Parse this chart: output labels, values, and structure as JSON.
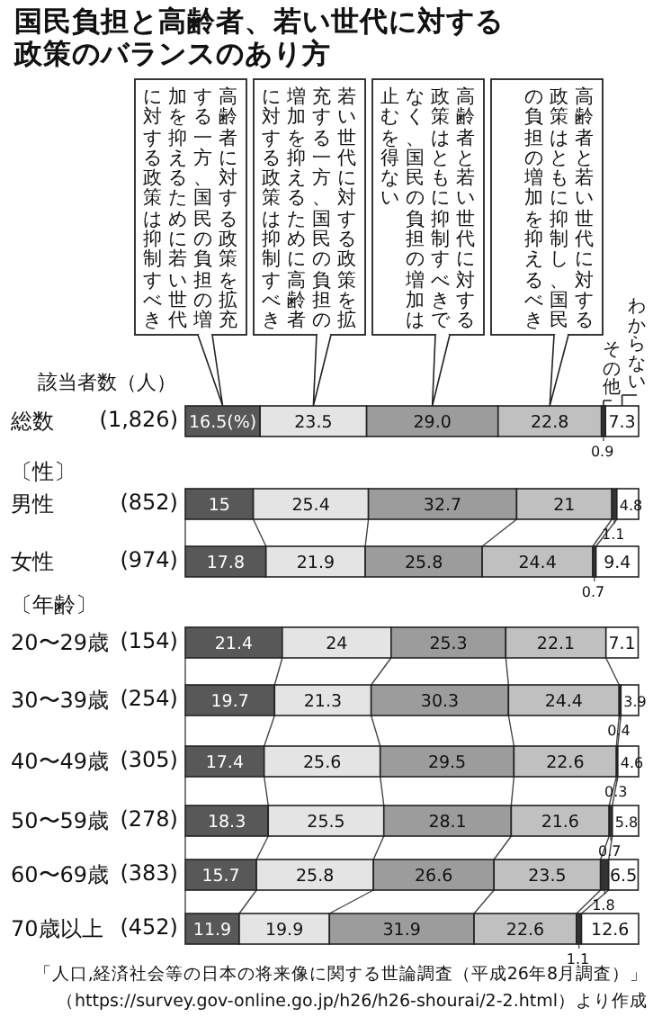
{
  "chart_data": {
    "type": "bar",
    "orientation": "horizontal",
    "stacked": true,
    "title": "国民負担と高齢者、若い世代に対する政策のバランスのあり方",
    "categories": [
      "総数",
      "男性",
      "女性",
      "20〜29歳",
      "30〜39歳",
      "40〜49歳",
      "50〜59歳",
      "60〜69歳",
      "70歳以上"
    ],
    "y2_categories": [
      "(1,826)",
      "(852)",
      "(974)",
      "(154)",
      "(254)",
      "(305)",
      "(278)",
      "(383)",
      "(452)"
    ],
    "xlim": [
      0,
      100
    ],
    "series": [
      {
        "name": "高齢者に対する政策を拡充する一方、国民の負担の増加を抑えるために若い世代に対する政策は抑制すべき",
        "color": "#585858",
        "values": [
          16.5,
          15,
          17.8,
          21.4,
          19.7,
          17.4,
          18.3,
          15.7,
          11.9
        ],
        "value_labels": [
          "16.5(%)",
          "15",
          "17.8",
          "21.4",
          "19.7",
          "17.4",
          "18.3",
          "15.7",
          "11.9"
        ]
      },
      {
        "name": "若い世代に対する政策を拡充する一方、国民の負担の増加を抑えるために高齢者に対する政策は抑制すべき",
        "color": "#e4e4e4",
        "values": [
          23.5,
          25.4,
          21.9,
          24,
          21.3,
          25.6,
          25.5,
          25.8,
          19.9
        ],
        "value_labels": [
          "23.5",
          "25.4",
          "21.9",
          "24",
          "21.3",
          "25.6",
          "25.5",
          "25.8",
          "19.9"
        ]
      },
      {
        "name": "高齢者と若い世代に対する政策はともに抑制すべきでなく、国民の負担の増加は止むを得ない",
        "color": "#9c9c9c",
        "values": [
          29.0,
          32.7,
          25.8,
          25.3,
          30.3,
          29.5,
          28.1,
          26.6,
          31.9
        ],
        "value_labels": [
          "29.0",
          "32.7",
          "25.8",
          "25.3",
          "30.3",
          "29.5",
          "28.1",
          "26.6",
          "31.9"
        ]
      },
      {
        "name": "高齢者と若い世代に対する政策はともに抑制し、国民の負担の増加を抑えるべき",
        "color": "#c0c0c0",
        "values": [
          22.8,
          21,
          24.4,
          22.1,
          24.4,
          22.6,
          21.6,
          23.5,
          22.6
        ],
        "value_labels": [
          "22.8",
          "21",
          "24.4",
          "22.1",
          "24.4",
          "22.6",
          "21.6",
          "23.5",
          "22.6"
        ]
      },
      {
        "name": "その他",
        "color": "#333333",
        "values": [
          0.9,
          1.1,
          0.7,
          null,
          0.4,
          0.3,
          0.7,
          1.8,
          1.1
        ],
        "value_labels": [
          "0.9",
          "1.1",
          "0.7",
          null,
          "0.4",
          "0.3",
          "0.7",
          "1.8",
          "1.1"
        ]
      },
      {
        "name": "わからない",
        "color": "#ffffff",
        "values": [
          7.3,
          4.8,
          9.4,
          7.1,
          3.9,
          4.6,
          5.8,
          6.5,
          12.6
        ],
        "value_labels": [
          "7.3",
          "4.8",
          "9.4",
          "7.1",
          "3.9",
          "4.6",
          "5.8",
          "6.5",
          "12.6"
        ]
      }
    ],
    "annotations": [
      "該当者数（人）",
      "〔性〕",
      "〔年齢〕",
      "「人口,経済社会等の日本の将来像に関する世論調査（平成26年8月調査）」",
      "（https://survey.gov-online.go.jp/h26/h26-shourai/2-2.html）より作成"
    ]
  }
}
